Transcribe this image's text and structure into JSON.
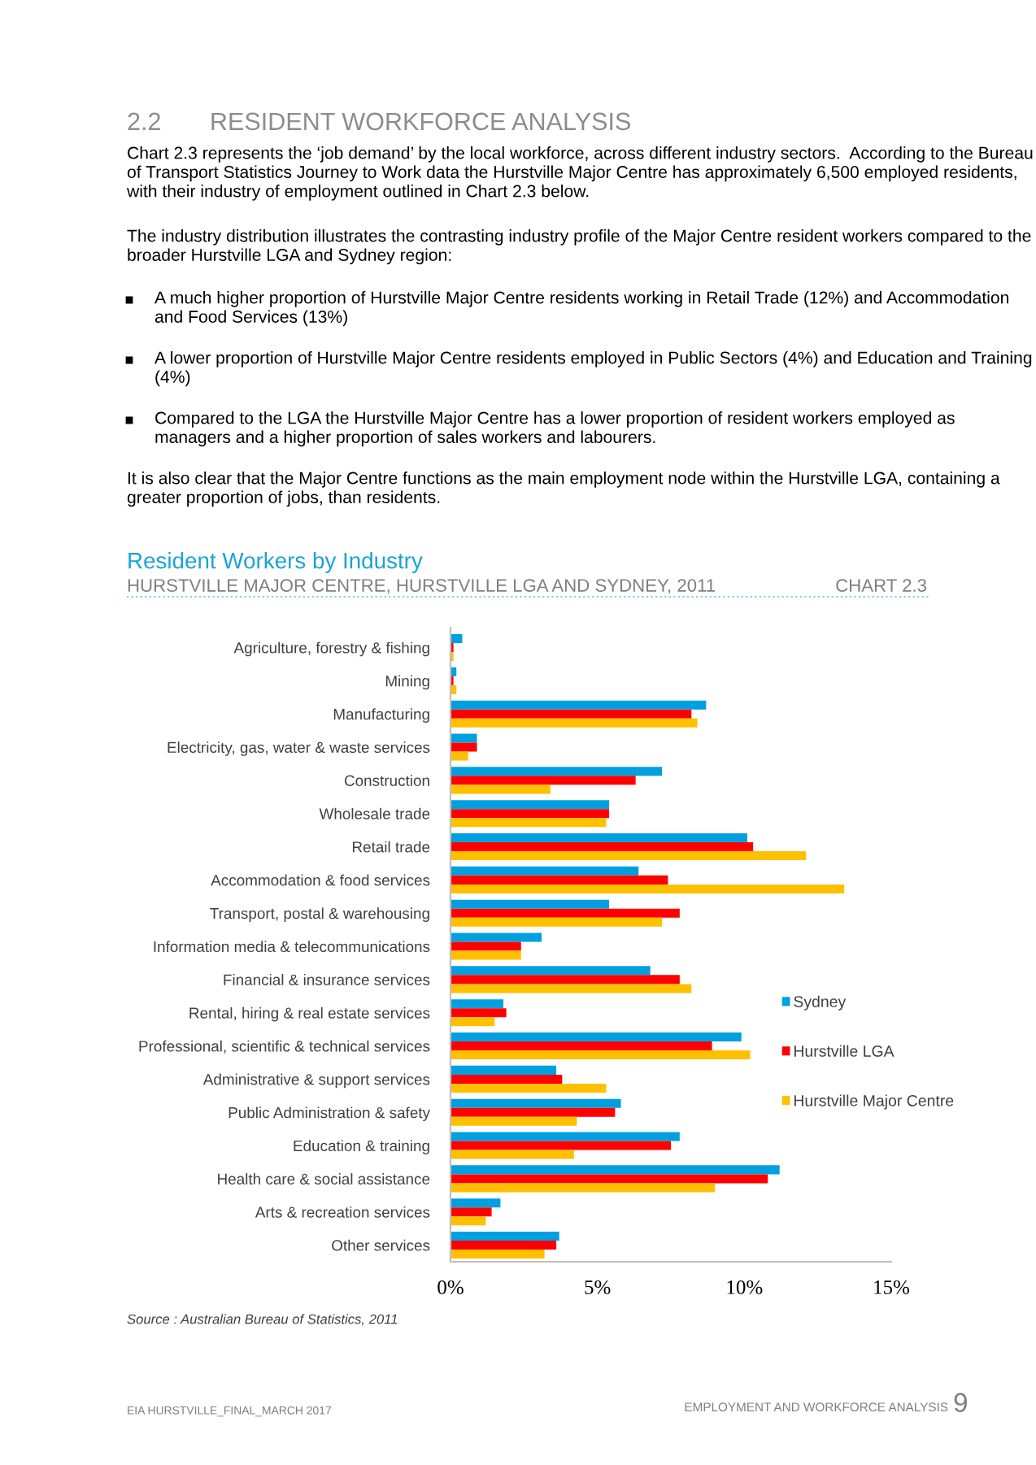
{
  "chart_data": {
    "type": "bar",
    "orientation": "horizontal",
    "title": "Resident Workers by Industry",
    "subtitle": "HURSTVILLE MAJOR CENTRE, HURSTVILLE LGA AND SYDNEY, 2011",
    "categories": [
      "Agriculture, forestry & fishing",
      "Mining",
      "Manufacturing",
      "Electricity, gas, water & waste services",
      "Construction",
      "Wholesale trade",
      "Retail trade",
      "Accommodation & food services",
      "Transport, postal & warehousing",
      "Information media & telecommunications",
      "Financial & insurance services",
      "Rental, hiring & real estate services",
      "Professional, scientific & technical services",
      "Administrative & support services",
      "Public Administration & safety",
      "Education & training",
      "Health care & social assistance",
      "Arts & recreation services",
      "Other services"
    ],
    "series": [
      {
        "name": "Sydney",
        "color": "#00a0e0",
        "values": [
          0.4,
          0.2,
          8.7,
          0.9,
          7.2,
          5.4,
          10.1,
          6.4,
          5.4,
          3.1,
          6.8,
          1.8,
          9.9,
          3.6,
          5.8,
          7.8,
          11.2,
          1.7,
          3.7
        ]
      },
      {
        "name": "Hurstville LGA",
        "color": "#ff0000",
        "values": [
          0.1,
          0.1,
          8.2,
          0.9,
          6.3,
          5.4,
          10.3,
          7.4,
          7.8,
          2.4,
          7.8,
          1.9,
          8.9,
          3.8,
          5.6,
          7.5,
          10.8,
          1.4,
          3.6
        ]
      },
      {
        "name": "Hurstville Major Centre",
        "color": "#ffc000",
        "values": [
          0.1,
          0.2,
          8.4,
          0.6,
          3.4,
          5.3,
          12.1,
          13.4,
          7.2,
          2.4,
          8.2,
          1.5,
          10.2,
          5.3,
          4.3,
          4.2,
          9.0,
          1.2,
          3.2
        ]
      }
    ],
    "xlim": [
      0,
      15
    ],
    "xticks": [
      {
        "value": 0,
        "label": "0%"
      },
      {
        "value": 5,
        "label": "5%"
      },
      {
        "value": 10,
        "label": "10%"
      },
      {
        "value": 15,
        "label": "15%"
      }
    ],
    "grid": false,
    "legend": "right",
    "annotations": [
      "2.2       RESIDENT WORKFORCE ANALYSIS",
      "Chart 2.3 represents the ‘job demand’ by the local workforce, across different industry sectors.  According to the Bureau of Transport Statistics Journey to Work data the Hurstville Major Centre has approximately 6,500 employed residents, with their industry of employment outlined in Chart 2.3 below.",
      "The industry distribution illustrates the contrasting industry profile of the Major Centre resident workers compared to the broader Hurstville LGA and Sydney region:",
      "A much higher proportion of Hurstville Major Centre residents working in Retail Trade (12%) and Accommodation and Food Services (13%)",
      "A lower proportion of Hurstville Major Centre residents employed in Public Sectors (4%) and Education and Training (4%)",
      "Compared to the LGA the Hurstville Major Centre has a lower proportion of resident workers employed as managers and a higher proportion of sales workers and labourers.",
      "It is also clear that the Major Centre functions as the main employment node within the Hurstville LGA, containing a greater proportion of jobs, than residents.",
      "CHART 2.3",
      "Source : Australian Bureau of Statistics, 2011",
      "EIA HURSTVILLE_FINAL_MARCH 2017",
      "EMPLOYMENT AND WORKFORCE ANALYSIS",
      "9"
    ]
  }
}
